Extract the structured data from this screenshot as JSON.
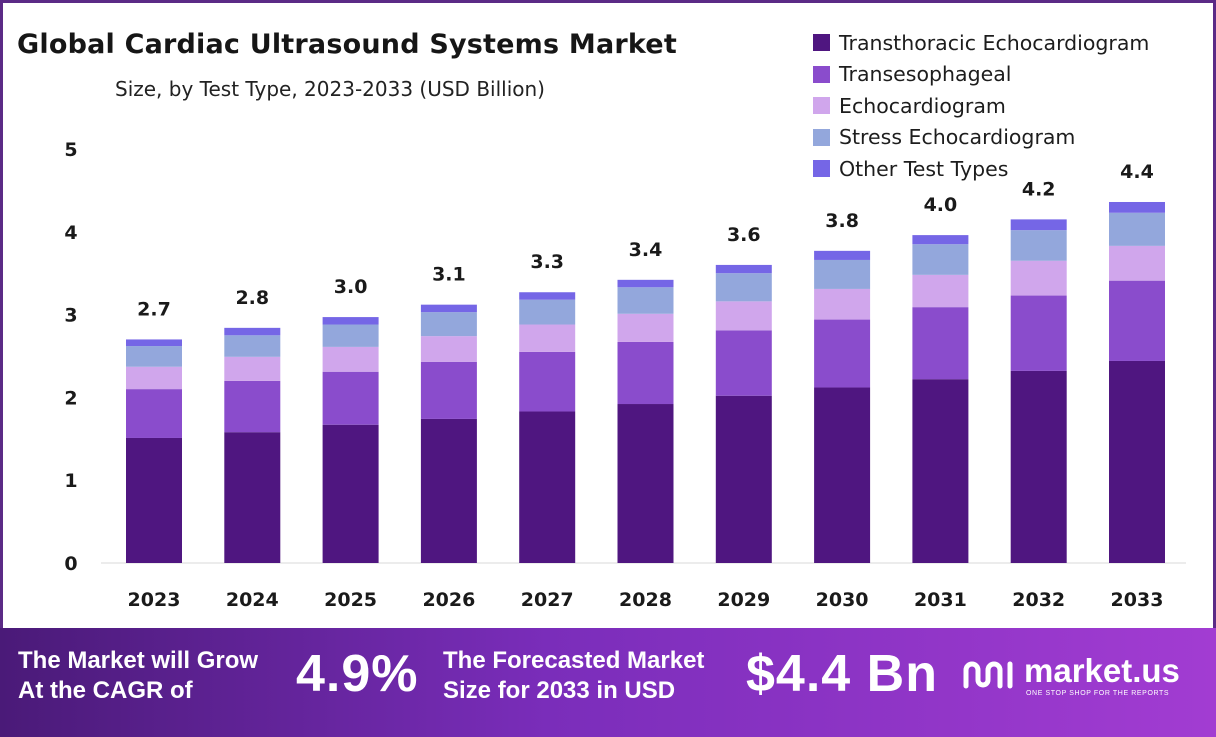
{
  "chart_data": {
    "type": "bar",
    "stacked": true,
    "title": "Global Cardiac Ultrasound Systems Market",
    "subtitle": "Size, by Test Type, 2023-2033 (USD Billion)",
    "xlabel": "",
    "ylabel": "",
    "ylim": [
      0,
      5
    ],
    "yticks": [
      "0",
      "1",
      "2",
      "3",
      "4",
      "5"
    ],
    "grid": false,
    "legend_position": "top-right",
    "categories": [
      "2023",
      "2024",
      "2025",
      "2026",
      "2027",
      "2028",
      "2029",
      "2030",
      "2031",
      "2032",
      "2033"
    ],
    "totals": [
      "2.7",
      "2.8",
      "3.0",
      "3.1",
      "3.3",
      "3.4",
      "3.6",
      "3.8",
      "4.0",
      "4.2",
      "4.4"
    ],
    "series": [
      {
        "name": "Transthoracic Echocardiogram",
        "color": "#4f1680",
        "values": [
          1.51,
          1.58,
          1.67,
          1.74,
          1.83,
          1.92,
          2.02,
          2.12,
          2.22,
          2.32,
          2.44
        ]
      },
      {
        "name": "Transesophageal",
        "color": "#8a4ccc",
        "values": [
          0.59,
          0.62,
          0.64,
          0.69,
          0.72,
          0.75,
          0.79,
          0.82,
          0.87,
          0.91,
          0.97
        ]
      },
      {
        "name": "Echocardiogram",
        "color": "#d0a6ec",
        "values": [
          0.27,
          0.29,
          0.3,
          0.31,
          0.33,
          0.34,
          0.35,
          0.37,
          0.39,
          0.42,
          0.42
        ]
      },
      {
        "name": "Stress Echocardiogram",
        "color": "#93a7dc",
        "values": [
          0.25,
          0.26,
          0.27,
          0.29,
          0.3,
          0.32,
          0.34,
          0.35,
          0.37,
          0.37,
          0.4
        ]
      },
      {
        "name": "Other Test Types",
        "color": "#7566e6",
        "values": [
          0.08,
          0.09,
          0.09,
          0.09,
          0.09,
          0.09,
          0.1,
          0.11,
          0.11,
          0.13,
          0.13
        ]
      }
    ]
  },
  "banner": {
    "cagr_label_line1": "The Market will Grow",
    "cagr_label_line2": "At the CAGR of",
    "cagr_value": "4.9%",
    "size_label_line1": "The Forecasted Market",
    "size_label_line2": "Size for 2033 in USD",
    "size_value": "$4.4 Bn",
    "brand_name": "market.us",
    "brand_tagline": "ONE STOP SHOP FOR THE REPORTS"
  },
  "colors": {
    "frame": "#5b2a86",
    "banner_start": "#4a1a78",
    "banner_end": "#a23cd2"
  }
}
